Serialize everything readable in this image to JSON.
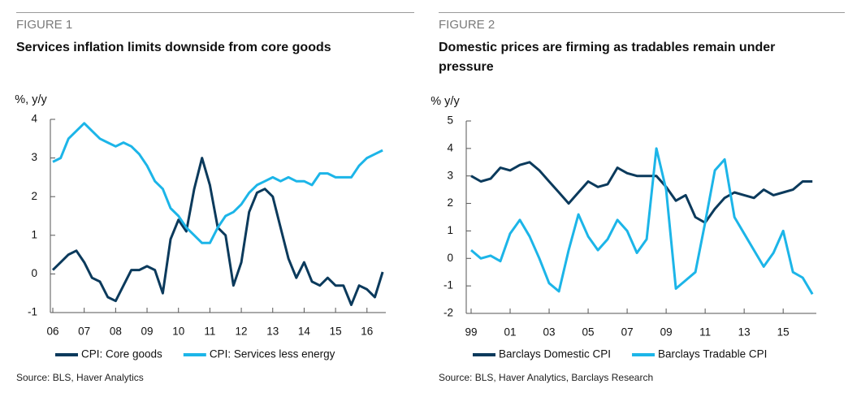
{
  "chart_data": [
    {
      "type": "line",
      "figure_label": "FIGURE 1",
      "title": "Services inflation limits downside from core goods",
      "y_unit": "%, y/y",
      "source": "Source: BLS, Haver Analytics",
      "x": [
        2006,
        2006.25,
        2006.5,
        2006.75,
        2007,
        2007.25,
        2007.5,
        2007.75,
        2008,
        2008.25,
        2008.5,
        2008.75,
        2009,
        2009.25,
        2009.5,
        2009.75,
        2010,
        2010.25,
        2010.5,
        2010.75,
        2011,
        2011.25,
        2011.5,
        2011.75,
        2012,
        2012.25,
        2012.5,
        2012.75,
        2013,
        2013.25,
        2013.5,
        2013.75,
        2014,
        2014.25,
        2014.5,
        2014.75,
        2015,
        2015.25,
        2015.5,
        2015.75,
        2016,
        2016.25,
        2016.5
      ],
      "series": [
        {
          "name": "CPI: Core goods",
          "color": "#0b3a5c",
          "values": [
            0.1,
            0.3,
            0.5,
            0.6,
            0.3,
            -0.1,
            -0.2,
            -0.6,
            -0.7,
            -0.3,
            0.1,
            0.1,
            0.2,
            0.1,
            -0.5,
            0.9,
            1.4,
            1.1,
            2.2,
            3.0,
            2.3,
            1.2,
            1.0,
            -0.3,
            0.3,
            1.6,
            2.1,
            2.2,
            2.0,
            1.2,
            0.4,
            -0.1,
            0.3,
            -0.2,
            -0.3,
            -0.1,
            -0.3,
            -0.3,
            -0.8,
            -0.3,
            -0.4,
            -0.6,
            0.05
          ]
        },
        {
          "name": "CPI: Services less energy",
          "color": "#1cb5e8",
          "values": [
            2.9,
            3.0,
            3.5,
            3.7,
            3.9,
            3.7,
            3.5,
            3.4,
            3.3,
            3.4,
            3.3,
            3.1,
            2.8,
            2.4,
            2.2,
            1.7,
            1.5,
            1.2,
            1.0,
            0.8,
            0.8,
            1.2,
            1.5,
            1.6,
            1.8,
            2.1,
            2.3,
            2.4,
            2.5,
            2.4,
            2.5,
            2.4,
            2.4,
            2.3,
            2.6,
            2.6,
            2.5,
            2.5,
            2.5,
            2.8,
            3.0,
            3.1,
            3.2
          ]
        }
      ],
      "xlim": [
        2006,
        2016.6
      ],
      "ylim": [
        -1,
        4
      ],
      "yticks": [
        -1,
        0,
        1,
        2,
        3,
        4
      ],
      "xticks": [
        {
          "value": 2006,
          "label": "06"
        },
        {
          "value": 2007,
          "label": "07"
        },
        {
          "value": 2008,
          "label": "08"
        },
        {
          "value": 2009,
          "label": "09"
        },
        {
          "value": 2010,
          "label": "10"
        },
        {
          "value": 2011,
          "label": "11"
        },
        {
          "value": 2012,
          "label": "12"
        },
        {
          "value": 2013,
          "label": "13"
        },
        {
          "value": 2014,
          "label": "14"
        },
        {
          "value": 2015,
          "label": "15"
        },
        {
          "value": 2016,
          "label": "16"
        }
      ],
      "grid": false
    },
    {
      "type": "line",
      "figure_label": "FIGURE 2",
      "title": "Domestic prices are firming as tradables remain under pressure",
      "y_unit": "% y/y",
      "source": "Source: BLS, Haver Analytics, Barclays Research",
      "x": [
        1999,
        1999.5,
        2000,
        2000.5,
        2001,
        2001.5,
        2002,
        2002.5,
        2003,
        2003.5,
        2004,
        2004.5,
        2005,
        2005.5,
        2006,
        2006.5,
        2007,
        2007.5,
        2008,
        2008.5,
        2009,
        2009.5,
        2010,
        2010.5,
        2011,
        2011.5,
        2012,
        2012.5,
        2013,
        2013.5,
        2014,
        2014.5,
        2015,
        2015.5,
        2016,
        2016.5
      ],
      "series": [
        {
          "name": "Barclays Domestic CPI",
          "color": "#0b3a5c",
          "values": [
            3.0,
            2.8,
            2.9,
            3.3,
            3.2,
            3.4,
            3.5,
            3.2,
            2.8,
            2.4,
            2.0,
            2.4,
            2.8,
            2.6,
            2.7,
            3.3,
            3.1,
            3.0,
            3.0,
            3.0,
            2.6,
            2.1,
            2.3,
            1.5,
            1.3,
            1.8,
            2.2,
            2.4,
            2.3,
            2.2,
            2.5,
            2.3,
            2.4,
            2.5,
            2.8,
            2.8
          ]
        },
        {
          "name": "Barclays Tradable CPI",
          "color": "#1cb5e8",
          "values": [
            0.3,
            0.0,
            0.1,
            -0.1,
            0.9,
            1.4,
            0.8,
            0.0,
            -0.9,
            -1.2,
            0.3,
            1.6,
            0.8,
            0.3,
            0.7,
            1.4,
            1.0,
            0.2,
            0.7,
            4.0,
            2.5,
            -1.1,
            -0.8,
            -0.5,
            1.3,
            3.2,
            3.6,
            1.5,
            0.9,
            0.3,
            -0.3,
            0.2,
            1.0,
            -0.5,
            -0.7,
            -1.3
          ]
        }
      ],
      "xlim": [
        1999,
        2016.7
      ],
      "ylim": [
        -2,
        5
      ],
      "yticks": [
        -2,
        -1,
        0,
        1,
        2,
        3,
        4,
        5
      ],
      "xticks": [
        {
          "value": 1999,
          "label": "99"
        },
        {
          "value": 2001,
          "label": "01"
        },
        {
          "value": 2003,
          "label": "03"
        },
        {
          "value": 2005,
          "label": "05"
        },
        {
          "value": 2007,
          "label": "07"
        },
        {
          "value": 2009,
          "label": "09"
        },
        {
          "value": 2011,
          "label": "11"
        },
        {
          "value": 2013,
          "label": "13"
        },
        {
          "value": 2015,
          "label": "15"
        }
      ],
      "grid": false
    }
  ]
}
